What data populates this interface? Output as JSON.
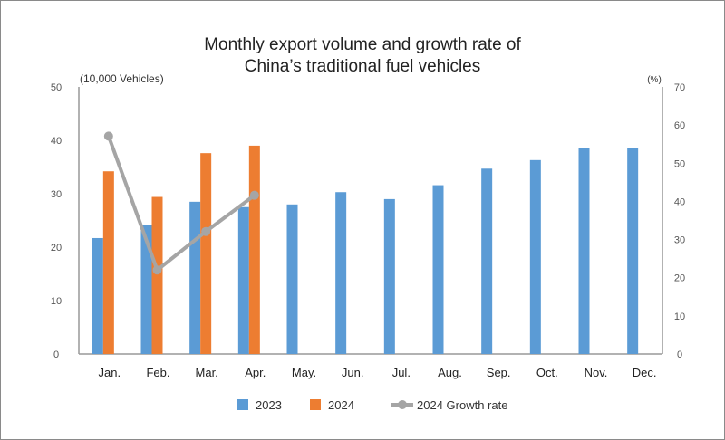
{
  "chart_data": {
    "type": "bar",
    "title_lines": [
      "Monthly export volume and growth rate of",
      "China’s traditional fuel vehicles"
    ],
    "ylabel_left": "(10,000 Vehicles)",
    "ylabel_right": "(%)",
    "ylim_left": [
      0,
      50
    ],
    "ylim_right": [
      0,
      70
    ],
    "yticks_left": [
      "0",
      "10",
      "20",
      "30",
      "40",
      "50"
    ],
    "yticks_right": [
      "0",
      "10",
      "20",
      "30",
      "40",
      "50",
      "60",
      "70"
    ],
    "categories": [
      "Jan.",
      "Feb.",
      "Mar.",
      "Apr.",
      "May.",
      "Jun.",
      "Jul.",
      "Aug.",
      "Sep.",
      "Oct.",
      "Nov.",
      "Dec."
    ],
    "grid": false,
    "legend_position": "bottom",
    "series": [
      {
        "name": "2023",
        "type": "bar",
        "axis": "left",
        "color": "#5b9bd5",
        "values": [
          21.7,
          24.1,
          28.5,
          27.5,
          28.0,
          30.3,
          29.0,
          31.6,
          34.7,
          36.3,
          38.5,
          38.6
        ]
      },
      {
        "name": "2024",
        "type": "bar",
        "axis": "left",
        "color": "#ed7d31",
        "values": [
          34.2,
          29.4,
          37.6,
          39.0,
          null,
          null,
          null,
          null,
          null,
          null,
          null,
          null
        ]
      },
      {
        "name": "2024 Growth rate",
        "type": "line",
        "axis": "right",
        "color": "#a5a5a5",
        "values": [
          57.1,
          22.0,
          32.1,
          41.6,
          null,
          null,
          null,
          null,
          null,
          null,
          null,
          null
        ]
      }
    ]
  }
}
